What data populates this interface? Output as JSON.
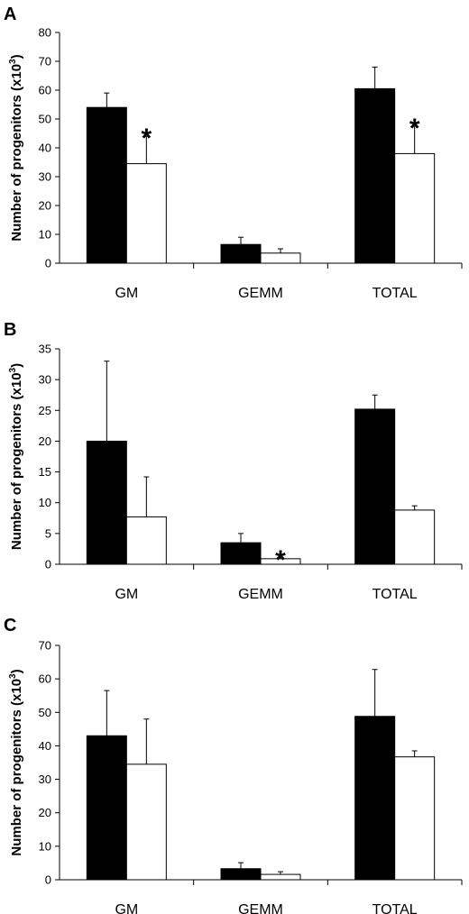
{
  "chart_data": [
    {
      "panel_label": "A",
      "type": "bar",
      "ylabel": "Number of progenitors (x10",
      "ylabel_sup": "3",
      "ylabel_close": ")",
      "ylim": [
        0,
        80
      ],
      "yticks": [
        0,
        10,
        20,
        30,
        40,
        50,
        60,
        70,
        80
      ],
      "categories": [
        "GM",
        "GEMM",
        "TOTAL"
      ],
      "series": [
        {
          "color": "#000000",
          "values": [
            54,
            6.5,
            60.5
          ],
          "errors": [
            5,
            2.5,
            7.5
          ]
        },
        {
          "color": "#ffffff",
          "values": [
            34.5,
            3.5,
            38
          ],
          "errors": [
            9.5,
            1.5,
            9.5
          ]
        }
      ],
      "significance": [
        {
          "category_index": 0,
          "series_index": 1,
          "label": "*"
        },
        {
          "category_index": 2,
          "series_index": 1,
          "label": "*"
        }
      ]
    },
    {
      "panel_label": "B",
      "type": "bar",
      "ylabel": "Number of progenitors (x10",
      "ylabel_sup": "3",
      "ylabel_close": ")",
      "ylim": [
        0,
        35
      ],
      "yticks": [
        0,
        5,
        10,
        15,
        20,
        25,
        30,
        35
      ],
      "categories": [
        "GM",
        "GEMM",
        "TOTAL"
      ],
      "series": [
        {
          "color": "#000000",
          "values": [
            20,
            3.5,
            25.2
          ],
          "errors": [
            13,
            1.5,
            2.3
          ]
        },
        {
          "color": "#ffffff",
          "values": [
            7.7,
            0.9,
            8.8
          ],
          "errors": [
            6.5,
            0.15,
            0.7
          ]
        }
      ],
      "significance": [
        {
          "category_index": 1,
          "series_index": 1,
          "label": "*"
        }
      ]
    },
    {
      "panel_label": "C",
      "type": "bar",
      "ylabel": "Number of progenitors (x10",
      "ylabel_sup": "3",
      "ylabel_close": ")",
      "ylim": [
        0,
        70
      ],
      "yticks": [
        0,
        10,
        20,
        30,
        40,
        50,
        60,
        70
      ],
      "categories": [
        "GM",
        "GEMM",
        "TOTAL"
      ],
      "series": [
        {
          "color": "#000000",
          "values": [
            43,
            3.3,
            48.8
          ],
          "errors": [
            13.5,
            1.8,
            14
          ]
        },
        {
          "color": "#ffffff",
          "values": [
            34.5,
            1.6,
            36.7
          ],
          "errors": [
            13.5,
            0.8,
            1.8
          ]
        }
      ],
      "significance": []
    }
  ]
}
